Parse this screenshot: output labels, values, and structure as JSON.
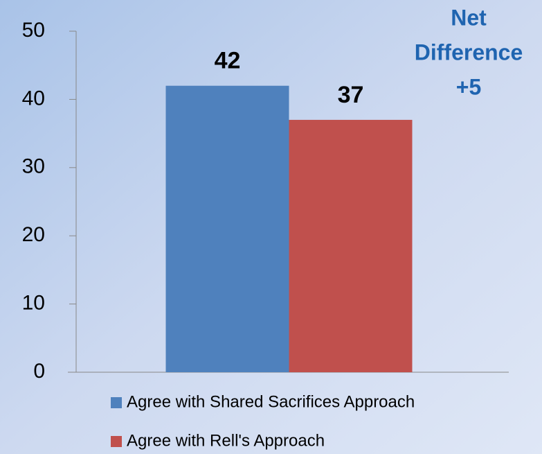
{
  "chart_data": {
    "type": "bar",
    "categories": [
      null
    ],
    "series": [
      {
        "name": "Agree with Shared Sacrifices Approach",
        "color": "#4f81bd",
        "values": [
          42
        ]
      },
      {
        "name": "Agree with Rell's Approach",
        "color": "#c0504d",
        "values": [
          37
        ]
      }
    ],
    "ylim": [
      0,
      50
    ],
    "yticks": [
      0,
      10,
      20,
      30,
      40,
      50
    ],
    "annotation": [
      "Net",
      "Difference",
      "+5"
    ],
    "legend": "bottom"
  }
}
